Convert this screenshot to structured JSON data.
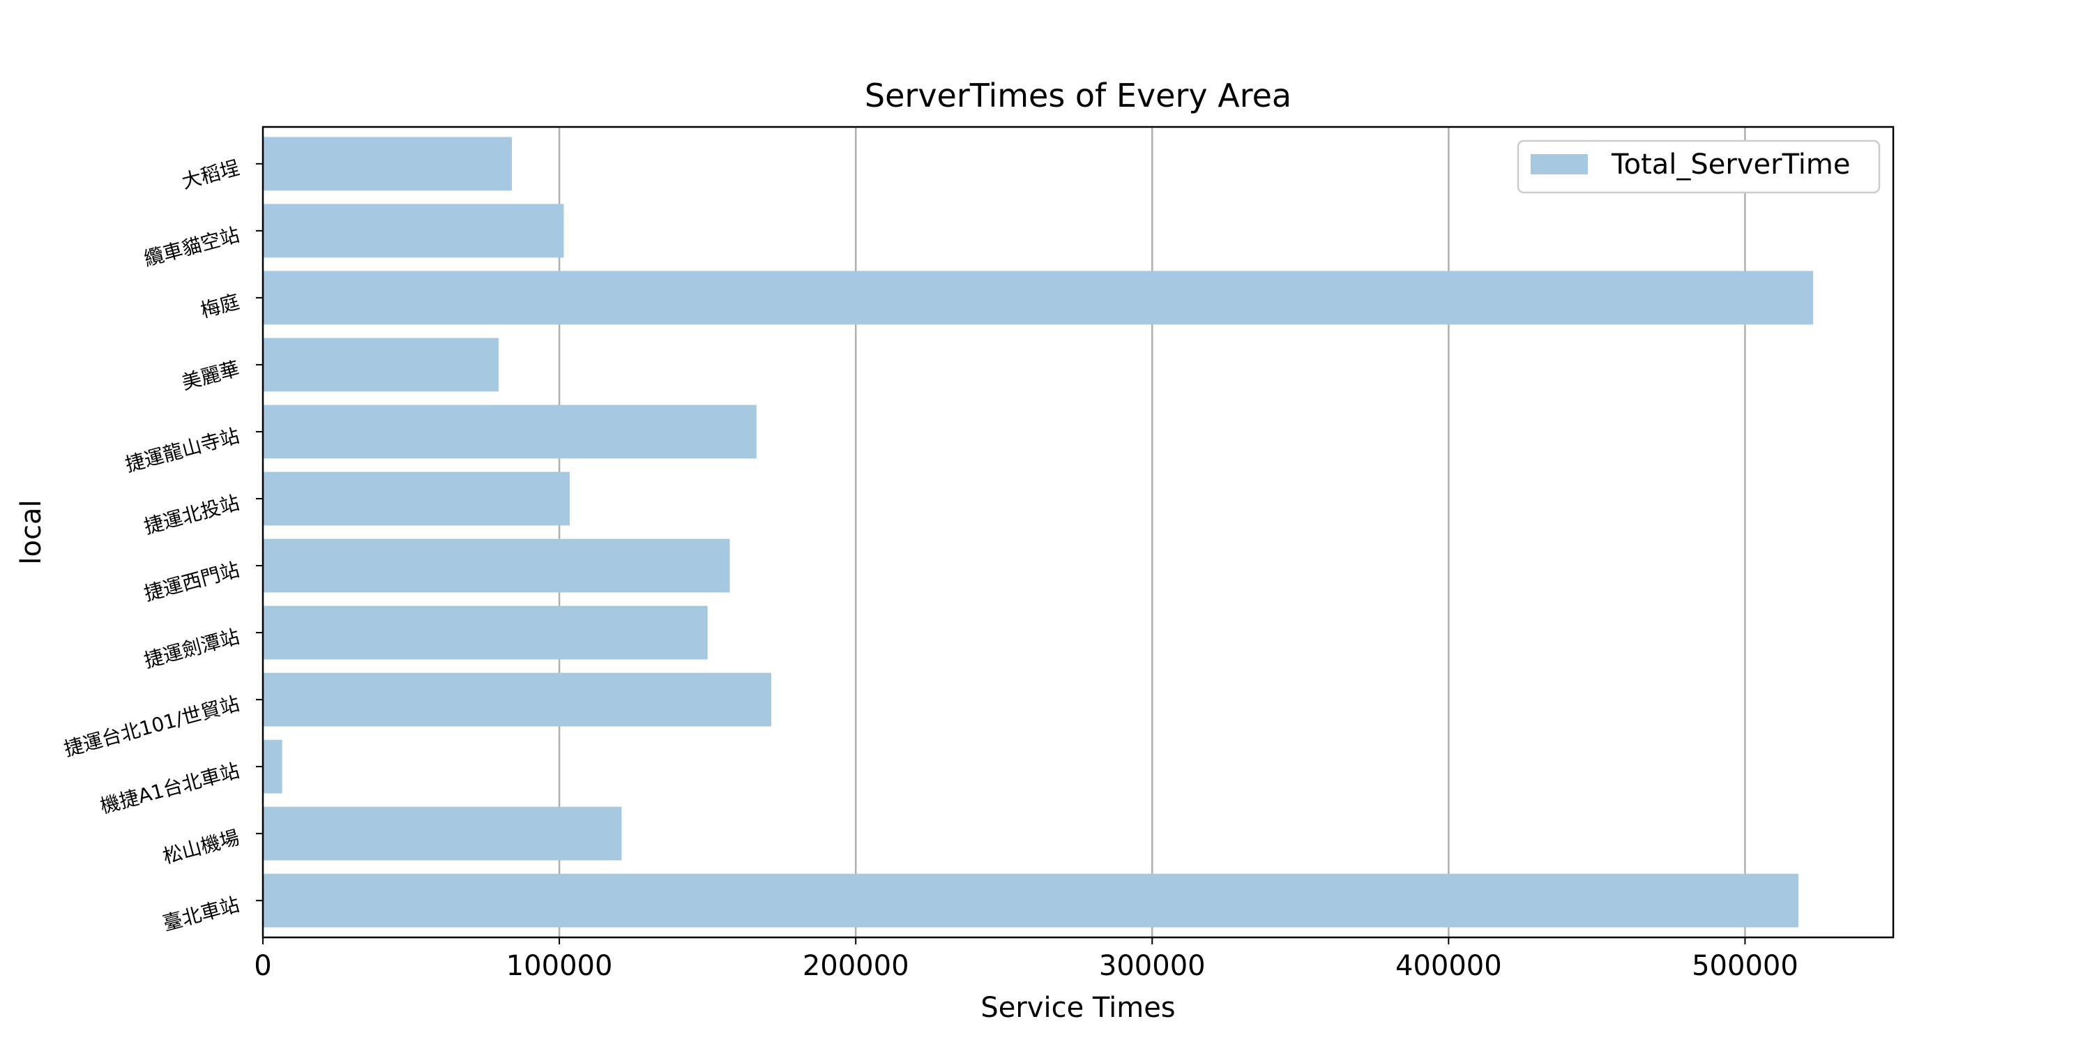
{
  "chart_data": {
    "type": "bar",
    "orientation": "horizontal",
    "title": "ServerTimes of Every Area",
    "xlabel": "Service Times",
    "ylabel": "local",
    "xlim": [
      0,
      550000
    ],
    "xticks": [
      "0",
      "100000",
      "200000",
      "300000",
      "400000",
      "500000"
    ],
    "xtick_values": [
      0,
      100000,
      200000,
      300000,
      400000,
      500000
    ],
    "grid": "vertical",
    "legend_position": "top-right",
    "categories": [
      "臺北車站",
      "松山機場",
      "機捷A1台北車站",
      "捷運台北101/世貿站",
      "捷運劍潭站",
      "捷運西門站",
      "捷運北投站",
      "捷運龍山寺站",
      "美麗華",
      "梅庭",
      "纜車貓空站",
      "大稻埕"
    ],
    "series": [
      {
        "name": "Total_ServerTime",
        "color": "#a6c8e0",
        "values": [
          518000,
          121000,
          6500,
          171500,
          150000,
          157500,
          103500,
          166500,
          79500,
          523000,
          101500,
          84000
        ]
      }
    ]
  }
}
